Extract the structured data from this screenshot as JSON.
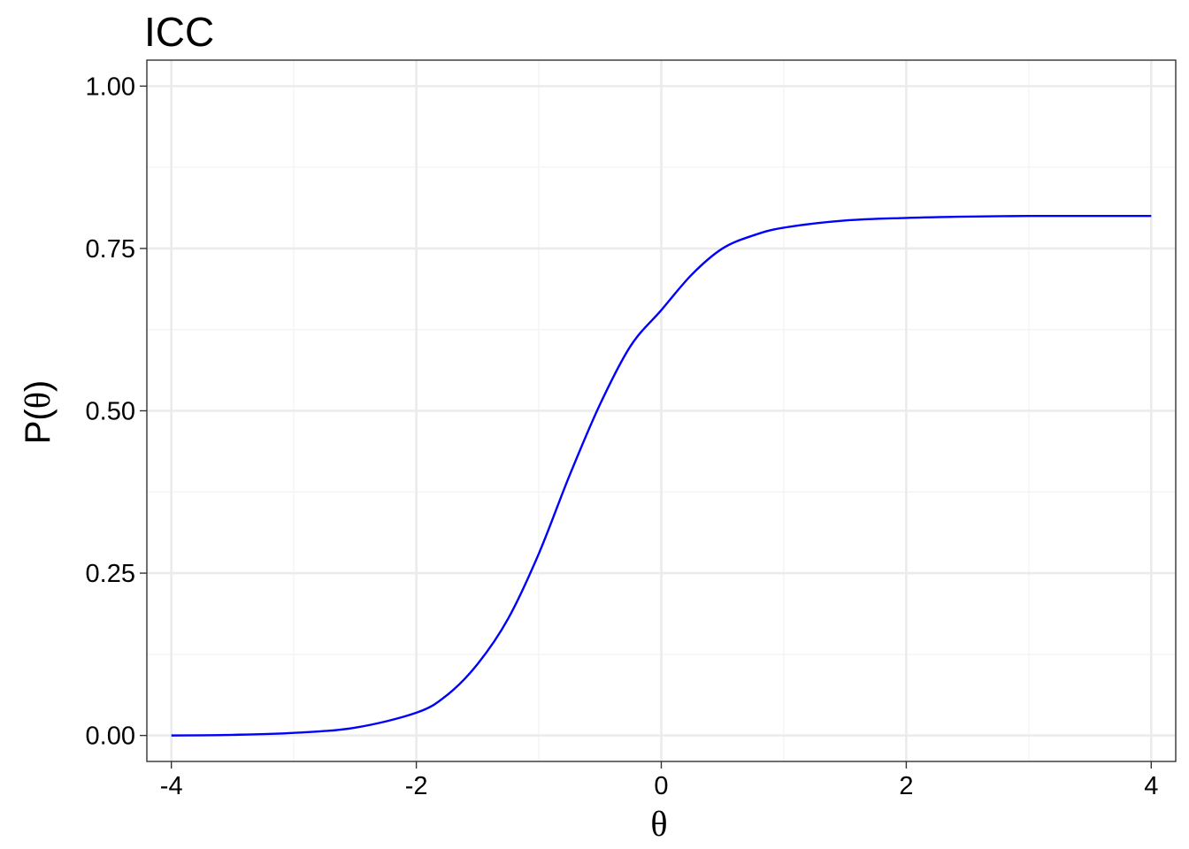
{
  "chart_data": {
    "type": "line",
    "title": "ICC",
    "xlabel": "θ",
    "ylabel_prefix": "P(",
    "ylabel_symbol": "θ",
    "ylabel_suffix": ")",
    "xlim": [
      -4.2,
      4.2
    ],
    "ylim": [
      -0.04,
      1.04
    ],
    "x_ticks": [
      -4,
      -2,
      0,
      2,
      4
    ],
    "x_tick_labels": [
      "-4",
      "-2",
      "0",
      "2",
      "4"
    ],
    "x_minor_ticks": [
      -3,
      -1,
      1,
      3
    ],
    "y_ticks": [
      0,
      0.25,
      0.5,
      0.75,
      1
    ],
    "y_tick_labels": [
      "0.00",
      "0.25",
      "0.50",
      "0.75",
      "1.00"
    ],
    "y_minor_ticks": [
      0.125,
      0.375,
      0.625,
      0.875
    ],
    "grid": true,
    "legend": "none",
    "series": [
      {
        "color": "#0000ff",
        "x": [
          -4.0,
          -3.5,
          -3.0,
          -2.5,
          -2.0,
          -1.75,
          -1.5,
          -1.25,
          -1.0,
          -0.75,
          -0.5,
          -0.25,
          0.0,
          0.25,
          0.5,
          0.75,
          1.0,
          1.5,
          2.0,
          2.5,
          3.0,
          3.5,
          4.0
        ],
        "y": [
          0.0,
          0.001,
          0.004,
          0.012,
          0.035,
          0.062,
          0.11,
          0.18,
          0.28,
          0.4,
          0.51,
          0.6,
          0.655,
          0.71,
          0.75,
          0.77,
          0.782,
          0.793,
          0.797,
          0.799,
          0.8,
          0.8,
          0.8
        ]
      }
    ],
    "colors": {
      "panel_border": "#333333",
      "grid_major": "#ebebeb",
      "grid_minor": "#f3f3f3",
      "tick": "#333333"
    }
  }
}
